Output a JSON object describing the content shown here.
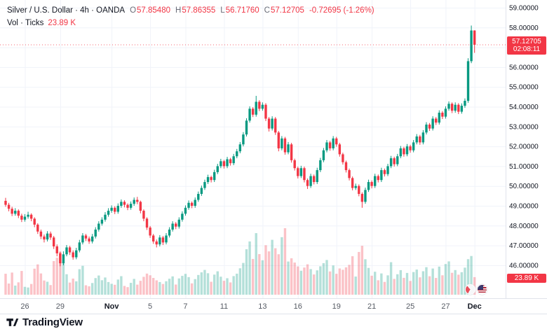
{
  "header": {
    "title": "Silver / U.S. Dollar · 4h · OANDA",
    "ohlc": {
      "o_label": "O",
      "o": "57.85480",
      "h_label": "H",
      "h": "57.86355",
      "l_label": "L",
      "l": "56.71760",
      "c_label": "C",
      "c": "57.12705",
      "change": "-0.72695 (-1.26%)"
    },
    "volume_label": "Vol · Ticks",
    "volume_value": "23.89 K"
  },
  "price_label": {
    "price": "57.12705",
    "countdown": "02:08:11",
    "color": "#f23645"
  },
  "volume_badge": {
    "value": "23.89 K",
    "color": "#f23645"
  },
  "footer": {
    "brand": "TradingView"
  },
  "chart_data": {
    "type": "candlestick",
    "title": "Silver / U.S. Dollar",
    "symbol": "XAG/USD",
    "interval": "4h",
    "exchange": "OANDA",
    "volume_study": "Vol · Ticks",
    "up_color": "#089981",
    "down_color": "#f23645",
    "grid_color": "#f0f3fa",
    "last_close": 57.12705,
    "y_axis": {
      "min_visible": 45.6,
      "max_visible": 59.3,
      "ticks": [
        "59.00000",
        "58.00000",
        "56.00000",
        "55.00000",
        "54.00000",
        "53.00000",
        "52.00000",
        "51.00000",
        "50.00000",
        "49.00000",
        "48.00000",
        "47.00000",
        "46.00000"
      ]
    },
    "x_ticks": [
      {
        "bar": 6,
        "label": "26"
      },
      {
        "bar": 17,
        "label": "29"
      },
      {
        "bar": 33,
        "label": "Nov",
        "major": true
      },
      {
        "bar": 45,
        "label": "5"
      },
      {
        "bar": 56,
        "label": "7"
      },
      {
        "bar": 68,
        "label": "11"
      },
      {
        "bar": 80,
        "label": "13"
      },
      {
        "bar": 91,
        "label": "16"
      },
      {
        "bar": 103,
        "label": "19"
      },
      {
        "bar": 114,
        "label": "21"
      },
      {
        "bar": 126,
        "label": "25"
      },
      {
        "bar": 137,
        "label": "27"
      },
      {
        "bar": 146,
        "label": "Dec",
        "major": true
      }
    ],
    "candles_format": [
      "open",
      "high",
      "low",
      "close",
      "volume_k_ticks"
    ],
    "candles": [
      [
        49.25,
        49.4,
        48.95,
        49.05,
        28.5
      ],
      [
        49.05,
        49.15,
        48.72,
        48.85,
        15.2
      ],
      [
        48.85,
        48.95,
        48.48,
        48.6,
        30.1
      ],
      [
        48.6,
        48.88,
        48.5,
        48.75,
        12.4
      ],
      [
        48.75,
        48.82,
        48.38,
        48.5,
        16.8
      ],
      [
        48.5,
        48.6,
        48.18,
        48.3,
        32.3
      ],
      [
        48.3,
        48.58,
        48.2,
        48.45,
        10.7
      ],
      [
        48.45,
        48.7,
        48.35,
        48.55,
        9.8
      ],
      [
        48.55,
        48.62,
        48.22,
        48.35,
        14.6
      ],
      [
        48.35,
        48.42,
        47.92,
        48.05,
        35.4
      ],
      [
        48.05,
        48.12,
        47.58,
        47.7,
        41.2
      ],
      [
        47.7,
        47.8,
        47.32,
        47.45,
        28.9
      ],
      [
        47.45,
        47.55,
        47.15,
        47.3,
        19.3
      ],
      [
        47.3,
        47.72,
        47.2,
        47.6,
        17.6
      ],
      [
        47.6,
        47.7,
        47.28,
        47.4,
        13.1
      ],
      [
        47.4,
        47.48,
        46.82,
        46.95,
        45.7
      ],
      [
        46.95,
        47.05,
        46.45,
        46.6,
        50.2
      ],
      [
        46.6,
        46.68,
        45.95,
        46.1,
        58.6
      ],
      [
        46.1,
        46.7,
        46.0,
        46.55,
        43.4
      ],
      [
        46.55,
        47.02,
        46.45,
        46.9,
        27.8
      ],
      [
        46.9,
        46.98,
        46.52,
        46.65,
        16.5
      ],
      [
        46.65,
        46.75,
        46.28,
        46.4,
        21.9
      ],
      [
        46.4,
        46.88,
        46.3,
        46.75,
        18.2
      ],
      [
        46.75,
        47.28,
        46.65,
        47.15,
        34.7
      ],
      [
        47.15,
        47.62,
        47.05,
        47.5,
        39.3
      ],
      [
        47.5,
        47.58,
        47.22,
        47.35,
        12.8
      ],
      [
        47.35,
        47.45,
        47.08,
        47.2,
        11.4
      ],
      [
        47.2,
        47.58,
        47.1,
        47.45,
        15.9
      ],
      [
        47.45,
        47.92,
        47.35,
        47.8,
        22.6
      ],
      [
        47.8,
        48.22,
        47.7,
        48.1,
        26.1
      ],
      [
        48.1,
        48.42,
        48.0,
        48.3,
        19.7
      ],
      [
        48.3,
        48.68,
        48.2,
        48.55,
        23.4
      ],
      [
        48.55,
        48.88,
        48.45,
        48.75,
        17.2
      ],
      [
        48.75,
        49.02,
        48.65,
        48.9,
        14.8
      ],
      [
        48.9,
        48.98,
        48.58,
        48.7,
        13.5
      ],
      [
        48.7,
        49.12,
        48.6,
        49.0,
        20.6
      ],
      [
        49.0,
        49.32,
        48.9,
        49.2,
        25.2
      ],
      [
        49.2,
        49.28,
        48.92,
        49.05,
        11.9
      ],
      [
        49.05,
        49.12,
        48.78,
        48.9,
        10.3
      ],
      [
        48.9,
        49.22,
        48.8,
        49.1,
        16.1
      ],
      [
        49.1,
        49.42,
        49.0,
        49.3,
        21.5
      ],
      [
        49.3,
        49.45,
        49.08,
        49.2,
        13.7
      ],
      [
        49.2,
        49.26,
        48.62,
        48.75,
        18.9
      ],
      [
        48.75,
        48.82,
        48.22,
        48.35,
        24.3
      ],
      [
        48.35,
        48.42,
        47.78,
        47.9,
        28.7
      ],
      [
        47.9,
        47.98,
        47.38,
        47.5,
        26.4
      ],
      [
        47.5,
        47.58,
        47.08,
        47.2,
        22.8
      ],
      [
        47.2,
        47.3,
        46.9,
        47.05,
        19.5
      ],
      [
        47.05,
        47.52,
        46.95,
        47.4,
        17.2
      ],
      [
        47.4,
        47.48,
        47.02,
        47.15,
        14.6
      ],
      [
        47.15,
        47.62,
        47.05,
        47.5,
        18.3
      ],
      [
        47.5,
        47.92,
        47.4,
        47.8,
        21.7
      ],
      [
        47.8,
        48.22,
        47.7,
        48.1,
        24.9
      ],
      [
        48.1,
        48.18,
        47.82,
        47.95,
        13.8
      ],
      [
        47.95,
        48.42,
        47.85,
        48.3,
        22.1
      ],
      [
        48.3,
        48.72,
        48.2,
        48.6,
        25.6
      ],
      [
        48.6,
        49.02,
        48.5,
        48.9,
        28.3
      ],
      [
        48.9,
        49.27,
        48.8,
        49.15,
        23.9
      ],
      [
        49.15,
        49.22,
        48.88,
        49.0,
        15.4
      ],
      [
        49.0,
        49.42,
        48.9,
        49.3,
        21.2
      ],
      [
        49.3,
        49.72,
        49.2,
        49.6,
        26.8
      ],
      [
        49.6,
        50.02,
        49.5,
        49.9,
        30.4
      ],
      [
        49.9,
        50.32,
        49.8,
        50.2,
        33.7
      ],
      [
        50.2,
        50.57,
        50.1,
        50.45,
        29.2
      ],
      [
        50.45,
        50.52,
        50.18,
        50.3,
        17.6
      ],
      [
        50.3,
        50.82,
        50.2,
        50.7,
        27.3
      ],
      [
        50.7,
        51.12,
        50.6,
        51.0,
        31.8
      ],
      [
        51.0,
        51.37,
        50.9,
        51.25,
        24.5
      ],
      [
        51.25,
        51.32,
        50.88,
        51.0,
        18.9
      ],
      [
        51.0,
        51.47,
        50.9,
        51.35,
        22.4
      ],
      [
        51.35,
        51.42,
        51.03,
        51.15,
        16.7
      ],
      [
        51.15,
        51.62,
        51.05,
        51.5,
        25.3
      ],
      [
        51.5,
        51.87,
        51.4,
        51.75,
        28.6
      ],
      [
        51.75,
        52.22,
        51.65,
        52.1,
        35.9
      ],
      [
        52.1,
        52.72,
        52.0,
        52.6,
        43.2
      ],
      [
        52.6,
        53.42,
        52.5,
        53.3,
        61.8
      ],
      [
        53.3,
        54.02,
        53.2,
        53.9,
        72.4
      ],
      [
        53.9,
        53.98,
        53.48,
        53.6,
        48.6
      ],
      [
        53.6,
        54.55,
        53.5,
        54.25,
        83.7
      ],
      [
        54.25,
        54.33,
        53.78,
        53.9,
        55.2
      ],
      [
        53.9,
        54.22,
        53.8,
        54.1,
        46.8
      ],
      [
        54.1,
        54.18,
        53.28,
        53.4,
        67.3
      ],
      [
        53.4,
        53.48,
        52.75,
        52.9,
        58.9
      ],
      [
        52.9,
        53.52,
        52.8,
        53.4,
        74.6
      ],
      [
        53.4,
        53.48,
        52.58,
        52.7,
        63.2
      ],
      [
        52.7,
        52.78,
        51.75,
        51.9,
        55.0
      ],
      [
        51.9,
        52.52,
        51.8,
        52.4,
        78.2
      ],
      [
        52.4,
        52.48,
        51.58,
        51.7,
        90.4
      ],
      [
        51.7,
        52.22,
        51.6,
        52.1,
        45.1
      ],
      [
        52.1,
        52.18,
        51.18,
        51.3,
        49.5
      ],
      [
        51.3,
        51.38,
        50.78,
        50.9,
        43.7
      ],
      [
        50.9,
        50.98,
        50.38,
        50.5,
        38.4
      ],
      [
        50.5,
        51.02,
        50.4,
        50.9,
        32.6
      ],
      [
        50.9,
        50.98,
        50.18,
        50.3,
        36.9
      ],
      [
        50.3,
        50.38,
        49.85,
        50.0,
        41.3
      ],
      [
        50.0,
        50.62,
        49.9,
        50.5,
        34.8
      ],
      [
        50.5,
        50.58,
        50.08,
        50.2,
        27.5
      ],
      [
        50.2,
        50.92,
        50.1,
        50.8,
        33.1
      ],
      [
        50.8,
        51.42,
        50.7,
        51.3,
        38.6
      ],
      [
        51.3,
        51.92,
        51.2,
        51.8,
        42.9
      ],
      [
        51.8,
        52.32,
        51.7,
        52.2,
        47.2
      ],
      [
        52.2,
        52.28,
        51.78,
        51.9,
        31.6
      ],
      [
        51.9,
        52.52,
        51.8,
        52.4,
        39.8
      ],
      [
        52.4,
        52.48,
        51.98,
        52.1,
        28.4
      ],
      [
        52.1,
        52.18,
        51.48,
        51.6,
        35.7
      ],
      [
        51.6,
        51.68,
        51.08,
        51.2,
        33.9
      ],
      [
        51.2,
        51.28,
        50.68,
        50.8,
        37.2
      ],
      [
        50.8,
        50.88,
        50.28,
        50.4,
        40.6
      ],
      [
        50.4,
        50.48,
        49.78,
        49.9,
        52.3
      ],
      [
        49.9,
        50.12,
        49.8,
        50.0,
        24.7
      ],
      [
        50.0,
        50.08,
        49.48,
        49.6,
        58.1
      ],
      [
        49.6,
        49.68,
        48.9,
        49.2,
        66.5
      ],
      [
        49.2,
        49.92,
        49.1,
        49.8,
        48.2
      ],
      [
        49.8,
        50.32,
        49.7,
        50.2,
        36.4
      ],
      [
        50.2,
        50.28,
        49.88,
        50.0,
        25.8
      ],
      [
        50.0,
        50.62,
        49.9,
        50.5,
        31.2
      ],
      [
        50.5,
        50.58,
        50.18,
        50.3,
        19.6
      ],
      [
        50.3,
        50.92,
        50.2,
        50.8,
        28.9
      ],
      [
        50.8,
        50.88,
        50.48,
        50.6,
        17.4
      ],
      [
        50.6,
        51.12,
        50.5,
        51.0,
        26.3
      ],
      [
        51.0,
        51.52,
        50.9,
        51.4,
        44.2
      ],
      [
        51.4,
        51.48,
        50.98,
        51.1,
        21.5
      ],
      [
        51.1,
        51.62,
        51.0,
        51.5,
        27.8
      ],
      [
        51.5,
        52.02,
        51.4,
        51.9,
        33.4
      ],
      [
        51.9,
        51.98,
        51.48,
        51.6,
        22.9
      ],
      [
        51.6,
        52.12,
        51.5,
        52.0,
        29.6
      ],
      [
        52.0,
        52.08,
        51.68,
        51.8,
        18.7
      ],
      [
        51.8,
        52.32,
        51.7,
        52.2,
        30.8
      ],
      [
        52.2,
        52.62,
        52.1,
        52.5,
        34.2
      ],
      [
        52.5,
        52.58,
        52.08,
        52.2,
        23.6
      ],
      [
        52.2,
        52.82,
        52.1,
        52.7,
        31.9
      ],
      [
        52.7,
        53.22,
        52.6,
        53.1,
        37.4
      ],
      [
        53.1,
        53.18,
        52.78,
        52.9,
        25.1
      ],
      [
        52.9,
        53.52,
        52.8,
        53.4,
        35.6
      ],
      [
        53.4,
        53.48,
        53.08,
        53.2,
        22.8
      ],
      [
        53.2,
        53.82,
        53.1,
        53.7,
        38.2
      ],
      [
        53.7,
        53.78,
        53.38,
        53.5,
        26.4
      ],
      [
        53.5,
        54.02,
        53.4,
        53.9,
        41.7
      ],
      [
        53.9,
        54.27,
        53.8,
        54.15,
        45.3
      ],
      [
        54.15,
        54.22,
        53.68,
        53.8,
        29.8
      ],
      [
        53.8,
        54.22,
        53.7,
        54.1,
        33.5
      ],
      [
        54.1,
        54.18,
        53.63,
        53.75,
        27.2
      ],
      [
        53.75,
        54.17,
        53.65,
        54.05,
        30.6
      ],
      [
        54.05,
        54.42,
        53.95,
        54.3,
        36.8
      ],
      [
        54.3,
        56.45,
        54.2,
        56.3,
        48.3
      ],
      [
        56.3,
        58.1,
        56.2,
        57.85,
        52.6
      ],
      [
        57.85,
        57.86,
        56.72,
        57.13,
        23.89
      ]
    ]
  }
}
